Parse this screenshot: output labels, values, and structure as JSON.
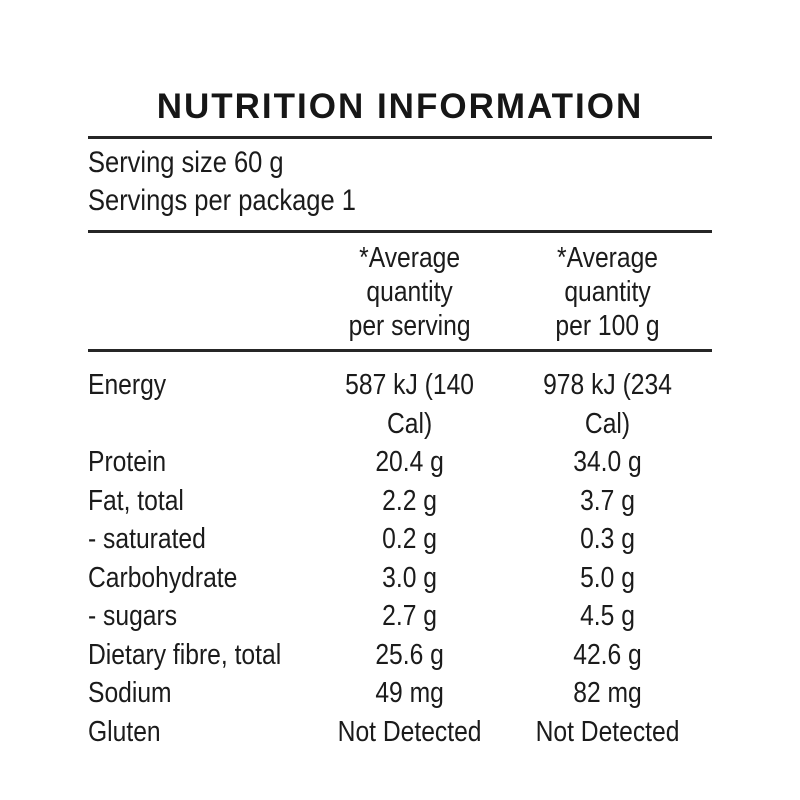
{
  "page": {
    "background_color": "#ffffff",
    "text_color": "#1b1b1b",
    "rule_color": "#262626"
  },
  "title": "NUTRITION INFORMATION",
  "serving_info": {
    "serving_size": "Serving size 60 g",
    "servings_per_package": "Servings per package 1"
  },
  "columns": {
    "per_serving": {
      "line1": "*Average",
      "line2": "quantity",
      "line3": "per serving"
    },
    "per_100g": {
      "line1": "*Average",
      "line2": "quantity",
      "line3": "per 100 g"
    }
  },
  "table": {
    "rows": [
      {
        "label": "Energy",
        "per_serving": "587 kJ (140 Cal)",
        "per_100g": "978 kJ (234 Cal)"
      },
      {
        "label": "Protein",
        "per_serving": "20.4 g",
        "per_100g": "34.0 g"
      },
      {
        "label": "Fat, total",
        "per_serving": "2.2 g",
        "per_100g": "3.7 g"
      },
      {
        "label": "- saturated",
        "per_serving": "0.2 g",
        "per_100g": "0.3 g"
      },
      {
        "label": "Carbohydrate",
        "per_serving": "3.0 g",
        "per_100g": "5.0 g"
      },
      {
        "label": "- sugars",
        "per_serving": "2.7 g",
        "per_100g": "4.5 g"
      },
      {
        "label": "Dietary fibre, total",
        "per_serving": "25.6 g",
        "per_100g": "42.6 g"
      },
      {
        "label": "Sodium",
        "per_serving": "49 mg",
        "per_100g": "82 mg"
      },
      {
        "label": "Gluten",
        "per_serving": "Not Detected",
        "per_100g": "Not Detected"
      }
    ]
  }
}
